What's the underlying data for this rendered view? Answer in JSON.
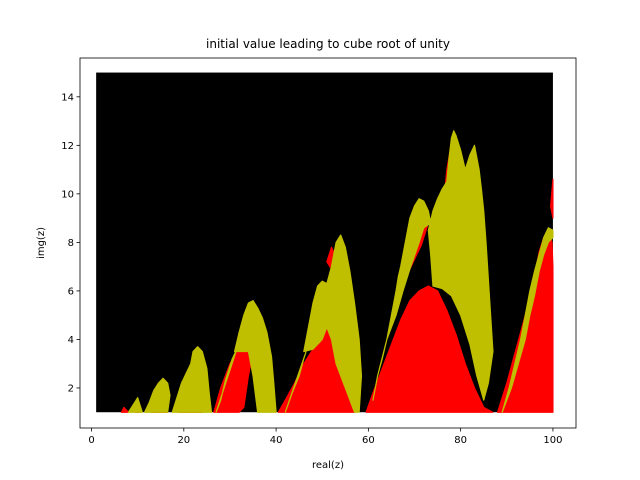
{
  "chart_data": {
    "type": "scatter",
    "title": "initial value leading to cube root of unity",
    "xlabel": "real(z)",
    "ylabel": "img(z)",
    "xlim": [
      -2.5,
      105
    ],
    "ylim": [
      0.35,
      15.6
    ],
    "x_ticks": [
      0,
      20,
      40,
      60,
      80,
      100
    ],
    "y_ticks": [
      2,
      4,
      6,
      8,
      10,
      12,
      14
    ],
    "grid": false,
    "legend": "none",
    "sampled_region": {
      "x": [
        1,
        100
      ],
      "y": [
        1,
        15
      ]
    },
    "colors": {
      "background_class": "#000000",
      "class_red": "#ff0000",
      "class_olive": "#bfbf00"
    },
    "series": [
      {
        "color": "#ff0000",
        "regions": [
          [
            [
              6.5,
              1
            ],
            [
              7,
              1.2
            ],
            [
              8,
              1
            ],
            [
              6.5,
              1
            ]
          ],
          [
            [
              9.5,
              1
            ],
            [
              10.2,
              1.3
            ],
            [
              10.6,
              1
            ],
            [
              9.5,
              1
            ]
          ],
          [
            [
              13,
              1
            ],
            [
              14,
              1.5
            ],
            [
              15,
              2.0
            ],
            [
              16,
              1.6
            ],
            [
              16.5,
              1
            ]
          ],
          [
            [
              19,
              1
            ],
            [
              20,
              1.6
            ],
            [
              21,
              2.3
            ],
            [
              22,
              2.7
            ],
            [
              23,
              2.2
            ],
            [
              24,
              1
            ],
            [
              19,
              1
            ]
          ],
          [
            [
              26.5,
              1
            ],
            [
              28,
              2.0
            ],
            [
              30,
              3.0
            ],
            [
              31,
              3.3
            ],
            [
              32,
              3.6
            ],
            [
              34,
              4.0
            ],
            [
              35,
              3.5
            ],
            [
              34,
              2.5
            ],
            [
              33,
              1.2
            ],
            [
              32,
              1
            ]
          ],
          [
            [
              40.5,
              1
            ],
            [
              42,
              1.5
            ],
            [
              44,
              2.2
            ],
            [
              46,
              3.0
            ],
            [
              48,
              3.6
            ],
            [
              50,
              4.0
            ],
            [
              51,
              4.7
            ],
            [
              52,
              4.0
            ],
            [
              53,
              3.0
            ],
            [
              55,
              2.0
            ],
            [
              57,
              1
            ],
            [
              40.5,
              1
            ]
          ],
          [
            [
              48,
              5.0
            ],
            [
              49,
              5.8
            ],
            [
              50,
              6.0
            ],
            [
              51,
              5.5
            ],
            [
              50.5,
              5.0
            ],
            [
              48,
              5.0
            ]
          ],
          [
            [
              51,
              7.2
            ],
            [
              52,
              7.8
            ],
            [
              53,
              7.4
            ],
            [
              52,
              6.9
            ],
            [
              51,
              7.2
            ]
          ],
          [
            [
              59.5,
              1
            ],
            [
              61,
              1.8
            ],
            [
              63,
              2.8
            ],
            [
              65,
              3.8
            ],
            [
              67,
              4.8
            ],
            [
              69,
              5.6
            ],
            [
              71,
              6.0
            ],
            [
              73,
              6.2
            ],
            [
              75,
              6.0
            ],
            [
              77,
              5.2
            ],
            [
              79,
              4.2
            ],
            [
              81,
              3.0
            ],
            [
              83,
              2.0
            ],
            [
              85,
              1.2
            ],
            [
              87,
              1
            ],
            [
              59.5,
              1
            ]
          ],
          [
            [
              67,
              6.3
            ],
            [
              69,
              7.2
            ],
            [
              71,
              8.2
            ],
            [
              72,
              8.9
            ],
            [
              73,
              8.8
            ],
            [
              71.5,
              7.9
            ],
            [
              69,
              6.9
            ],
            [
              67,
              6.3
            ]
          ],
          [
            [
              76.5,
              10.0
            ],
            [
              77,
              11.0
            ],
            [
              78,
              12.1
            ],
            [
              79,
              12.3
            ],
            [
              80,
              11.7
            ],
            [
              79.5,
              10.6
            ],
            [
              78.5,
              9.8
            ],
            [
              76.5,
              10.0
            ]
          ],
          [
            [
              81,
              9.8
            ],
            [
              82,
              10.6
            ],
            [
              83,
              10.2
            ],
            [
              82,
              9.4
            ],
            [
              81,
              9.8
            ]
          ],
          [
            [
              88,
              1
            ],
            [
              90,
              2.2
            ],
            [
              92,
              3.6
            ],
            [
              93,
              4.3
            ],
            [
              94,
              5.0
            ],
            [
              95,
              5.8
            ],
            [
              96,
              6.6
            ],
            [
              97,
              7.6
            ],
            [
              98,
              8.2
            ],
            [
              99,
              8.4
            ],
            [
              99.8,
              8.0
            ],
            [
              100,
              7.0
            ],
            [
              100,
              1
            ],
            [
              88,
              1
            ]
          ],
          [
            [
              99.5,
              9.5
            ],
            [
              100,
              10.6
            ],
            [
              100,
              9.0
            ],
            [
              99.5,
              9.5
            ]
          ]
        ]
      },
      {
        "color": "#bfbf00",
        "regions": [
          [
            [
              8,
              1
            ],
            [
              9,
              1.3
            ],
            [
              10,
              1.6
            ],
            [
              10.5,
              1.3
            ],
            [
              11,
              1
            ]
          ],
          [
            [
              11.5,
              1
            ],
            [
              12.5,
              1.4
            ],
            [
              13.5,
              1.9
            ],
            [
              14.5,
              2.2
            ],
            [
              15.5,
              2.4
            ],
            [
              16.5,
              2.2
            ],
            [
              17,
              1.7
            ],
            [
              16.5,
              1
            ]
          ],
          [
            [
              17.5,
              1
            ],
            [
              18.5,
              1.6
            ],
            [
              19.5,
              2.2
            ],
            [
              20.5,
              2.6
            ],
            [
              21.5,
              3.0
            ],
            [
              22,
              3.5
            ],
            [
              23,
              3.7
            ],
            [
              24,
              3.5
            ],
            [
              25,
              2.8
            ],
            [
              25.5,
              1.8
            ],
            [
              26,
              1
            ]
          ],
          [
            [
              27,
              1
            ],
            [
              28,
              1.5
            ],
            [
              29,
              2.3
            ],
            [
              30.5,
              3.2
            ],
            [
              31.5,
              3.6
            ]
          ],
          [
            [
              31,
              3.5
            ],
            [
              32,
              4.3
            ],
            [
              33,
              5.0
            ],
            [
              34,
              5.5
            ],
            [
              35,
              5.6
            ],
            [
              36,
              5.3
            ],
            [
              37,
              4.9
            ],
            [
              38,
              4.3
            ],
            [
              39,
              3.3
            ],
            [
              39.5,
              2.2
            ],
            [
              40,
              1
            ],
            [
              36,
              1
            ],
            [
              35,
              2.5
            ],
            [
              34,
              3.5
            ],
            [
              32,
              3.5
            ],
            [
              31,
              3.5
            ]
          ],
          [
            [
              42,
              1
            ],
            [
              43.5,
              1.8
            ],
            [
              45,
              2.5
            ],
            [
              46,
              3.2
            ],
            [
              46.5,
              3.5
            ]
          ],
          [
            [
              46,
              3.5
            ],
            [
              47,
              4.5
            ],
            [
              48,
              5.5
            ],
            [
              49,
              6.2
            ],
            [
              50,
              6.4
            ],
            [
              51,
              6.3
            ],
            [
              52,
              7.0
            ],
            [
              53,
              8.0
            ],
            [
              54,
              8.3
            ],
            [
              55,
              7.8
            ],
            [
              56,
              6.8
            ],
            [
              57,
              5.5
            ],
            [
              58,
              4.0
            ],
            [
              58.5,
              2.5
            ],
            [
              58,
              1
            ],
            [
              57,
              1
            ],
            [
              55,
              2.0
            ],
            [
              53,
              3.0
            ],
            [
              52,
              4.0
            ],
            [
              51,
              4.5
            ],
            [
              50,
              4.0
            ],
            [
              48,
              3.6
            ],
            [
              46,
              3.5
            ]
          ],
          [
            [
              61,
              1.5
            ],
            [
              62,
              2.5
            ],
            [
              63,
              3.2
            ],
            [
              64,
              4.0
            ],
            [
              65,
              5.0
            ],
            [
              66,
              6.0
            ],
            [
              66.5,
              6.6
            ],
            [
              67,
              7.0
            ],
            [
              68,
              8.0
            ],
            [
              69,
              9.0
            ],
            [
              70,
              9.5
            ],
            [
              71,
              9.8
            ],
            [
              72,
              9.7
            ],
            [
              73,
              9.3
            ],
            [
              73.5,
              8.8
            ],
            [
              72,
              8.6
            ],
            [
              71,
              8.0
            ],
            [
              69,
              6.9
            ],
            [
              67.5,
              6.0
            ],
            [
              66,
              5.0
            ],
            [
              64,
              4.0
            ],
            [
              62,
              2.5
            ],
            [
              61,
              1.5
            ]
          ],
          [
            [
              73,
              8.5
            ],
            [
              74,
              9.3
            ],
            [
              75,
              9.8
            ],
            [
              76,
              10.2
            ],
            [
              77,
              10.5
            ],
            [
              77.5,
              11.5
            ],
            [
              78,
              12.3
            ],
            [
              78.5,
              12.6
            ],
            [
              79,
              12.4
            ],
            [
              80,
              11.8
            ],
            [
              81,
              11.0
            ],
            [
              82,
              11.6
            ],
            [
              83,
              12.0
            ],
            [
              84,
              11.0
            ],
            [
              84.5,
              10.2
            ],
            [
              85,
              9.3
            ],
            [
              85.5,
              8.0
            ],
            [
              86,
              6.5
            ],
            [
              86.5,
              5.0
            ],
            [
              87,
              3.5
            ],
            [
              86,
              2.2
            ],
            [
              85,
              1.5
            ],
            [
              83.5,
              2.5
            ],
            [
              82,
              3.8
            ],
            [
              80,
              5.0
            ],
            [
              78,
              5.8
            ],
            [
              76,
              6.1
            ],
            [
              74,
              6.2
            ],
            [
              73.5,
              7.5
            ],
            [
              73,
              8.5
            ]
          ],
          [
            [
              89,
              1
            ],
            [
              90.5,
              2.0
            ],
            [
              92,
              3.2
            ],
            [
              93,
              4.0
            ],
            [
              94,
              5.0
            ],
            [
              95,
              6.0
            ],
            [
              96,
              6.8
            ],
            [
              97,
              7.5
            ],
            [
              98,
              8.2
            ],
            [
              99,
              8.6
            ],
            [
              100,
              8.5
            ],
            [
              100,
              8.2
            ],
            [
              99,
              8.0
            ],
            [
              98,
              7.5
            ],
            [
              97,
              6.8
            ],
            [
              96,
              5.8
            ],
            [
              95,
              5.0
            ],
            [
              94,
              4.0
            ],
            [
              92.5,
              3.0
            ],
            [
              91,
              2.0
            ],
            [
              89,
              1
            ]
          ]
        ]
      }
    ]
  }
}
